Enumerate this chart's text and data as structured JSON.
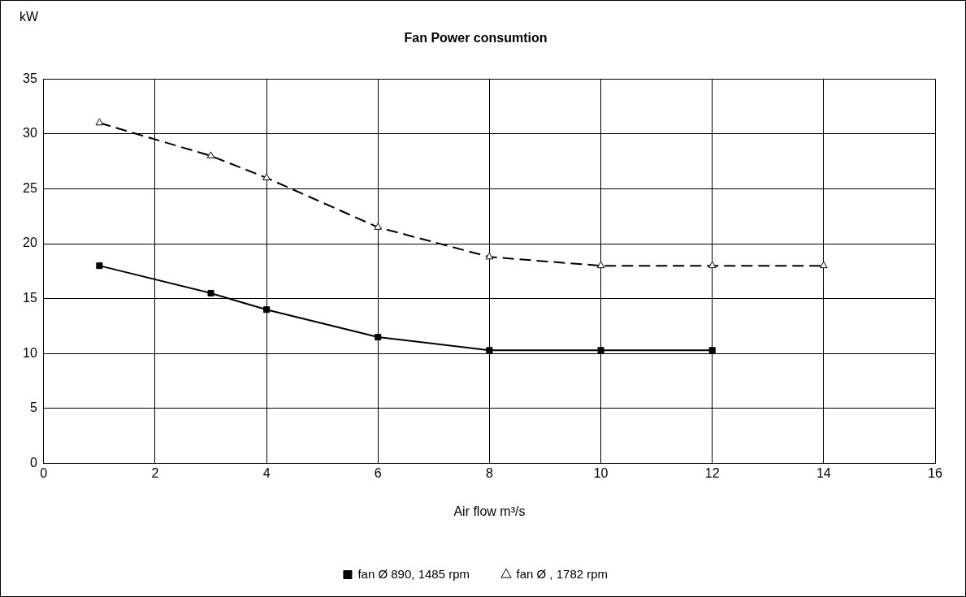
{
  "chart_data": {
    "type": "line",
    "title": "Fan Power consumtion",
    "xlabel": "Air flow m³/s",
    "ylabel": "kW",
    "xlim": [
      0,
      16
    ],
    "xticks": [
      0,
      2,
      4,
      6,
      8,
      10,
      12,
      14,
      16
    ],
    "ylim": [
      0,
      35
    ],
    "yticks": [
      0,
      5,
      10,
      15,
      20,
      25,
      30,
      35
    ],
    "grid": true,
    "legend": "bottom",
    "series": [
      {
        "name": "fan Ø 890, 1485 rpm",
        "color": "#000000",
        "marker": "square",
        "line_style": "solid",
        "x": [
          1,
          3,
          4,
          6,
          8,
          10,
          12
        ],
        "values": [
          18,
          15.5,
          14,
          11.5,
          10.3,
          10.3,
          10.3
        ]
      },
      {
        "name": "fan Ø , 1782 rpm",
        "color": "#000000",
        "marker": "triangle",
        "line_style": "dashed",
        "x": [
          1,
          3,
          4,
          6,
          8,
          10,
          12,
          14
        ],
        "values": [
          31,
          28,
          26,
          21.5,
          18.8,
          18,
          18,
          18
        ]
      }
    ]
  }
}
